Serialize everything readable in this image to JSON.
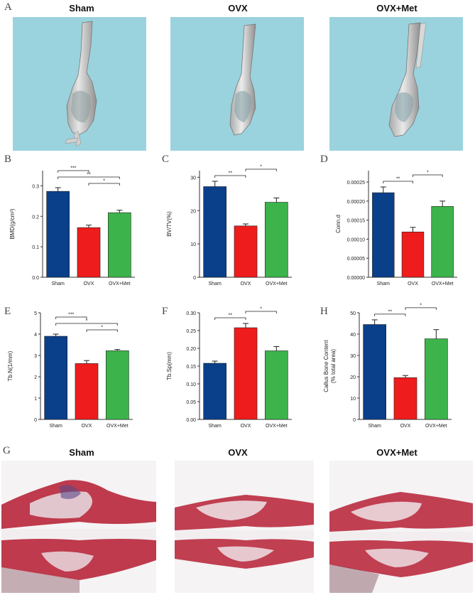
{
  "panel_labels": {
    "a": "A",
    "b": "B",
    "c": "C",
    "d": "D",
    "e": "E",
    "f": "F",
    "g": "G",
    "h": "H"
  },
  "group_titles": [
    "Sham",
    "OVX",
    "OVX+Met"
  ],
  "colors": {
    "sham": "#0a3f8a",
    "ovx": "#ee1c1c",
    "met": "#3cb44b",
    "ct_background": "#9ad3dd",
    "tissue_red": "#b8263a"
  },
  "chart_data": [
    {
      "id": "B",
      "type": "bar",
      "categories": [
        "Sham",
        "OVX",
        "OVX+Met"
      ],
      "values": [
        0.282,
        0.163,
        0.212
      ],
      "errors": [
        0.012,
        0.008,
        0.008
      ],
      "ylabel": "BMD(g/cm³)",
      "ylim": [
        0,
        0.35
      ],
      "yticks": [
        "0.0",
        "0.1",
        "0.2",
        "0.3"
      ],
      "ytick_values": [
        0,
        0.1,
        0.2,
        0.3
      ],
      "significance": [
        {
          "from": 1,
          "to": 2,
          "label": "*"
        },
        {
          "from": 0,
          "to": 2,
          "label": "**"
        },
        {
          "from": 0,
          "to": 1,
          "label": "***"
        }
      ]
    },
    {
      "id": "C",
      "type": "bar",
      "categories": [
        "Sham",
        "OVX",
        "OVX+Met"
      ],
      "values": [
        27.2,
        15.4,
        22.5
      ],
      "errors": [
        1.6,
        0.6,
        1.3
      ],
      "ylabel": "BV/TV(%)",
      "ylim": [
        0,
        32
      ],
      "yticks": [
        "0",
        "10",
        "20",
        "30"
      ],
      "ytick_values": [
        0,
        10,
        20,
        30
      ],
      "significance": [
        {
          "from": 0,
          "to": 1,
          "label": "**"
        },
        {
          "from": 1,
          "to": 2,
          "label": "*"
        }
      ]
    },
    {
      "id": "D",
      "type": "bar",
      "categories": [
        "Sham",
        "OVX",
        "OVX+Met"
      ],
      "values": [
        0.000222,
        0.000119,
        0.000186
      ],
      "errors": [
        1.5e-05,
        1.2e-05,
        1.4e-05
      ],
      "ylabel": "Conn.d",
      "ylim": [
        0,
        0.00028
      ],
      "yticks": [
        "0.00000",
        "0.00005",
        "0.00010",
        "0.00015",
        "0.00020",
        "0.00025"
      ],
      "ytick_values": [
        0,
        5e-05,
        0.0001,
        0.00015,
        0.0002,
        0.00025
      ],
      "significance": [
        {
          "from": 0,
          "to": 1,
          "label": "**"
        },
        {
          "from": 1,
          "to": 2,
          "label": "*"
        }
      ]
    },
    {
      "id": "E",
      "type": "bar",
      "categories": [
        "Sham",
        "OVX",
        "OVX+Met"
      ],
      "values": [
        3.9,
        2.62,
        3.22
      ],
      "errors": [
        0.1,
        0.14,
        0.06
      ],
      "ylabel": "Tb.N(1/mm)",
      "ylim": [
        0,
        5
      ],
      "yticks": [
        "0",
        "1",
        "2",
        "3",
        "4",
        "5"
      ],
      "ytick_values": [
        0,
        1,
        2,
        3,
        4,
        5
      ],
      "significance": [
        {
          "from": 1,
          "to": 2,
          "label": "*"
        },
        {
          "from": 0,
          "to": 2,
          "label": "*"
        },
        {
          "from": 0,
          "to": 1,
          "label": "***"
        }
      ]
    },
    {
      "id": "F",
      "type": "bar",
      "categories": [
        "Sham",
        "OVX",
        "OVX+Met"
      ],
      "values": [
        0.158,
        0.258,
        0.193
      ],
      "errors": [
        0.006,
        0.012,
        0.012
      ],
      "ylabel": "Tb.Sp(mm)",
      "ylim": [
        0,
        0.3
      ],
      "yticks": [
        "0.00",
        "0.05",
        "0.10",
        "0.15",
        "0.20",
        "0.25",
        "0.30"
      ],
      "ytick_values": [
        0,
        0.05,
        0.1,
        0.15,
        0.2,
        0.25,
        0.3
      ],
      "significance": [
        {
          "from": 0,
          "to": 1,
          "label": "**"
        },
        {
          "from": 1,
          "to": 2,
          "label": "*"
        }
      ]
    },
    {
      "id": "H",
      "type": "bar",
      "categories": [
        "Sham",
        "OVX",
        "OVX+Met"
      ],
      "values": [
        44.5,
        19.6,
        37.8
      ],
      "errors": [
        2.2,
        1.0,
        4.3
      ],
      "ylabel": "Callus Bone Content",
      "ylabel2": "(% total area)",
      "ylim": [
        0,
        50
      ],
      "yticks": [
        "0",
        "10",
        "20",
        "30",
        "40",
        "50"
      ],
      "ytick_values": [
        0,
        10,
        20,
        30,
        40,
        50
      ],
      "significance": [
        {
          "from": 0,
          "to": 1,
          "label": "**"
        },
        {
          "from": 1,
          "to": 2,
          "label": "*"
        }
      ]
    }
  ]
}
